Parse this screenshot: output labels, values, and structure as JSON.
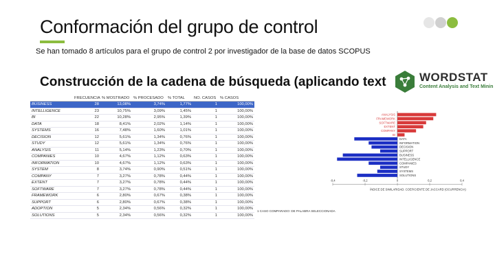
{
  "slide": {
    "title": "Conformación del grupo de control",
    "subtitle": "Se han tomado 8 artículos para el grupo de control 2 por investigador de la base de datos SCOPUS",
    "heading": "Construcción de la cadena de búsqueda (aplicando text",
    "accent_color": "#8cbd3f",
    "dot_colors": [
      "#e6e6e6",
      "#d0d0d0",
      "#8cbd3f"
    ]
  },
  "logo": {
    "word": "WORDSTAT",
    "tagline": "Content Analysis and Text Minin",
    "icon": "hexagon-network-icon",
    "color": "#3a7d3a"
  },
  "table": {
    "columns": [
      "",
      "FRECUENCIA",
      "% MOSTRADO",
      "% PROCESADO",
      "% TOTAL",
      "NO. CASOS",
      "% CASOS"
    ],
    "rows": [
      [
        "BUSINESS",
        "28",
        "13,08%",
        "3,74%",
        "1,77%",
        "1",
        "100,00%"
      ],
      [
        "INTELLIGENCE",
        "23",
        "10,75%",
        "3,09%",
        "1,45%",
        "1",
        "100,00%"
      ],
      [
        "BI",
        "22",
        "10,28%",
        "2,95%",
        "1,39%",
        "1",
        "100,00%"
      ],
      [
        "DATA",
        "18",
        "8,41%",
        "2,02%",
        "1,14%",
        "1",
        "100,00%"
      ],
      [
        "SYSTEMS",
        "16",
        "7,48%",
        "1,60%",
        "1,01%",
        "1",
        "100,00%"
      ],
      [
        "DECISION",
        "12",
        "5,61%",
        "1,34%",
        "0,76%",
        "1",
        "100,00%"
      ],
      [
        "STUDY",
        "12",
        "5,61%",
        "1,34%",
        "0,76%",
        "1",
        "100,00%"
      ],
      [
        "ANALYSIS",
        "11",
        "5,14%",
        "1,23%",
        "0,70%",
        "1",
        "100,00%"
      ],
      [
        "COMPANIES",
        "10",
        "4,67%",
        "1,12%",
        "0,63%",
        "1",
        "100,00%"
      ],
      [
        "INFORMATION",
        "10",
        "4,67%",
        "1,12%",
        "0,63%",
        "1",
        "100,00%"
      ],
      [
        "SYSTEM",
        "8",
        "3,74%",
        "0,90%",
        "0,51%",
        "1",
        "100,00%"
      ],
      [
        "COMPANY",
        "7",
        "3,27%",
        "0,78%",
        "0,44%",
        "1",
        "100,00%"
      ],
      [
        "EXTENT",
        "7",
        "3,27%",
        "0,78%",
        "0,44%",
        "1",
        "100,00%"
      ],
      [
        "SOFTWARE",
        "7",
        "3,27%",
        "0,78%",
        "0,44%",
        "1",
        "100,00%"
      ],
      [
        "FRAMEWORK",
        "6",
        "2,80%",
        "0,67%",
        "0,38%",
        "1",
        "100,00%"
      ],
      [
        "SUPPORT",
        "6",
        "2,80%",
        "0,67%",
        "0,38%",
        "1",
        "100,00%"
      ],
      [
        "ADOPTION",
        "5",
        "2,34%",
        "0,56%",
        "0,32%",
        "1",
        "100,00%"
      ],
      [
        "SOLUTIONS",
        "5",
        "2,34%",
        "0,56%",
        "0,32%",
        "1",
        "100,00%"
      ]
    ],
    "selected_row": 0
  },
  "chart_data": {
    "type": "bar",
    "orientation": "horizontal",
    "categories": [
      "ANALYSIS",
      "FRAMEWORK",
      "SOFTWARE",
      "EXTENT",
      "COMPANY",
      "BI",
      "DATA",
      "INFORMATION",
      "DECISION",
      "SUPPORT",
      "BUSINESS",
      "INTELLIGENCE",
      "COMPANIES",
      "STUDY",
      "SYSTEMS",
      "SOLUTIONS"
    ],
    "values": [
      0.27,
      0.25,
      0.2,
      0.18,
      0.13,
      0.05,
      -0.3,
      -0.2,
      -0.18,
      -0.12,
      -0.38,
      -0.42,
      -0.2,
      -0.12,
      -0.14,
      -0.28
    ],
    "series_colors": {
      "positive": "#d83a3a",
      "negative": "#1c2fc4"
    },
    "xlim": [
      -0.45,
      0.45
    ],
    "xticks": [
      "-0,4",
      "-0,2",
      "0",
      "0,2",
      "0,4"
    ],
    "xlabel": "ÍNDICE DE SIMILARIDAD: COEFICIENTE DE JACCARD (OCURRENCIA)",
    "legend": "1 CASO COMPARADO: DE PALABRA SELECCIONADA"
  }
}
